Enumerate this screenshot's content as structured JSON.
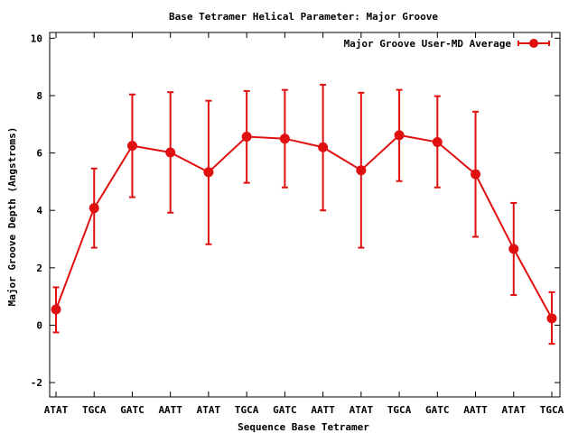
{
  "chart_data": {
    "type": "line",
    "title": "Base Tetramer Helical Parameter: Major Groove",
    "xlabel": "Sequence Base Tetramer",
    "ylabel": "Major Groove Depth (Angstroms)",
    "categories": [
      "ATAT",
      "TGCA",
      "GATC",
      "AATT",
      "ATAT",
      "TGCA",
      "GATC",
      "AATT",
      "ATAT",
      "TGCA",
      "GATC",
      "AATT",
      "ATAT",
      "TGCA"
    ],
    "ylim": [
      -2.5,
      10.2
    ],
    "yticks": [
      -2,
      0,
      2,
      4,
      6,
      8,
      10
    ],
    "legend_position": "top-right",
    "grid": false,
    "series": [
      {
        "name": "Major Groove User-MD Average",
        "color": "#e01010",
        "values": [
          0.55,
          4.08,
          6.25,
          6.02,
          5.33,
          6.57,
          6.5,
          6.2,
          5.4,
          6.62,
          6.38,
          5.26,
          2.66,
          0.24
        ],
        "error_low": [
          -0.25,
          2.7,
          4.46,
          3.92,
          2.82,
          4.96,
          4.8,
          4.0,
          2.7,
          5.02,
          4.8,
          3.08,
          1.05,
          -0.65
        ],
        "error_high": [
          1.32,
          5.46,
          8.04,
          8.12,
          7.82,
          8.16,
          8.2,
          8.38,
          8.1,
          8.2,
          7.98,
          7.44,
          4.26,
          1.15
        ]
      }
    ]
  }
}
